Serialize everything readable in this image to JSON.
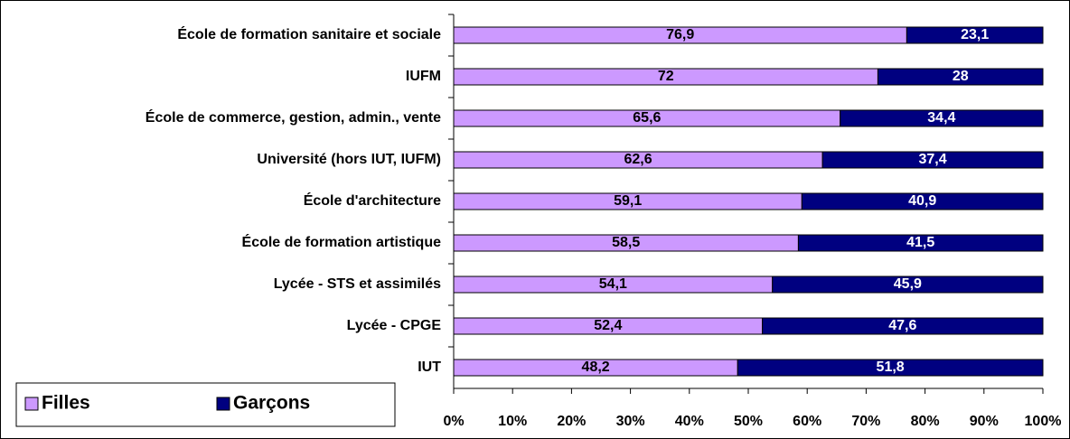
{
  "chart_data": {
    "type": "stacked-bar-horizontal",
    "categories": [
      "École de formation sanitaire et sociale",
      "IUFM",
      "École de commerce, gestion, admin., vente",
      "Université (hors IUT, IUFM)",
      "École d'architecture",
      "École de formation artistique",
      "Lycée - STS et assimilés",
      "Lycée - CPGE",
      "IUT"
    ],
    "series": [
      {
        "name": "Filles",
        "color": "#cc99ff",
        "label_color": "#000000",
        "values": [
          76.9,
          72,
          65.6,
          62.6,
          59.1,
          58.5,
          54.1,
          52.4,
          48.2
        ],
        "value_labels": [
          "76,9",
          "72",
          "65,6",
          "62,6",
          "59,1",
          "58,5",
          "54,1",
          "52,4",
          "48,2"
        ]
      },
      {
        "name": "Garçons",
        "color": "#000080",
        "label_color": "#ffffff",
        "values": [
          23.1,
          28,
          34.4,
          37.4,
          40.9,
          41.5,
          45.9,
          47.6,
          51.8
        ],
        "value_labels": [
          "23,1",
          "28",
          "34,4",
          "37,4",
          "40,9",
          "41,5",
          "45,9",
          "47,6",
          "51,8"
        ]
      }
    ],
    "xlim": [
      0,
      100
    ],
    "xticks": [
      {
        "value": 0,
        "label": "0%"
      },
      {
        "value": 10,
        "label": "10%"
      },
      {
        "value": 20,
        "label": "20%"
      },
      {
        "value": 30,
        "label": "30%"
      },
      {
        "value": 40,
        "label": "40%"
      },
      {
        "value": 50,
        "label": "50%"
      },
      {
        "value": 60,
        "label": "60%"
      },
      {
        "value": 70,
        "label": "70%"
      },
      {
        "value": 80,
        "label": "80%"
      },
      {
        "value": 90,
        "label": "90%"
      },
      {
        "value": 100,
        "label": "100%"
      }
    ],
    "grid": false,
    "legend": "bottom-left"
  }
}
